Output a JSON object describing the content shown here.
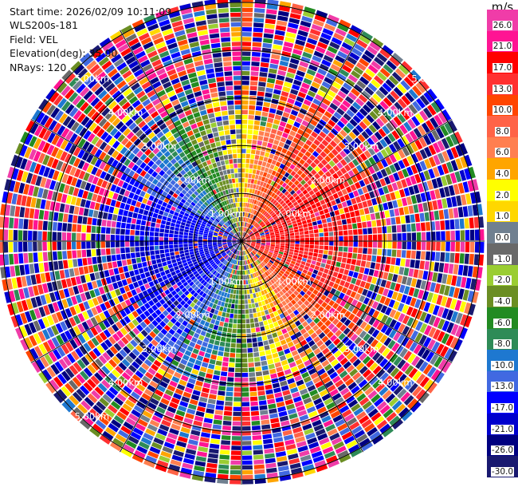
{
  "info": {
    "start_time": "Start time: 2026/02/09 10:11:09",
    "instrument": "WLS200s-181",
    "field": "Field: VEL",
    "elevation": "Elevation(deg): 35.00",
    "nrays": "NRays: 120"
  },
  "chart_data": {
    "type": "heatmap",
    "subtype": "ppi-polar",
    "field": "VEL",
    "units": "m/s",
    "n_rays": 120,
    "ray_width_deg": 3,
    "n_gates": 50,
    "range_max_km": 5.1,
    "range_rings_km": [
      1,
      2,
      3,
      4,
      5
    ],
    "range_ring_labels": [
      "1.00km",
      "2.00km",
      "3.00km",
      "4.00km",
      "5.00km"
    ],
    "spoke_interval_deg": 30,
    "coherent_region": {
      "max_range_km": 2.8,
      "description": "wind dipole: positive (toward) to the east, negative (away) to the west",
      "east_velocity_ms": 17,
      "west_velocity_ms": -17,
      "north_velocity_ms": 3,
      "south_velocity_ms": -3
    },
    "outer_region": "noise, random velocities across full colour scale",
    "colorbar": {
      "unit_label": "m/s",
      "tick_labels": [
        "26.0",
        "21.0",
        "17.0",
        "13.0",
        "10.0",
        "8.0",
        "6.0",
        "4.0",
        "2.0",
        "1.0",
        "0.0",
        "-1.0",
        "-2.0",
        "-4.0",
        "-6.0",
        "-8.0",
        "-10.0",
        "-13.0",
        "-17.0",
        "-21.0",
        "-26.0",
        "-30.0"
      ],
      "bounds": [
        30,
        26,
        21,
        17,
        13,
        10,
        8,
        6,
        4,
        2,
        1,
        0,
        -1,
        -2,
        -4,
        -6,
        -8,
        -10,
        -13,
        -17,
        -21,
        -26,
        -30
      ],
      "colors": [
        "#f03ca8",
        "#ff1493",
        "#ff0000",
        "#ff3030",
        "#ff4500",
        "#ff6347",
        "#ff7f50",
        "#ffa500",
        "#ffff00",
        "#ffd700",
        "#708090",
        "#696969",
        "#9acd32",
        "#6b8e23",
        "#228b22",
        "#2e8b57",
        "#1e78d0",
        "#4169e1",
        "#0000ff",
        "#0000cd",
        "#000080",
        "#191970"
      ]
    }
  }
}
